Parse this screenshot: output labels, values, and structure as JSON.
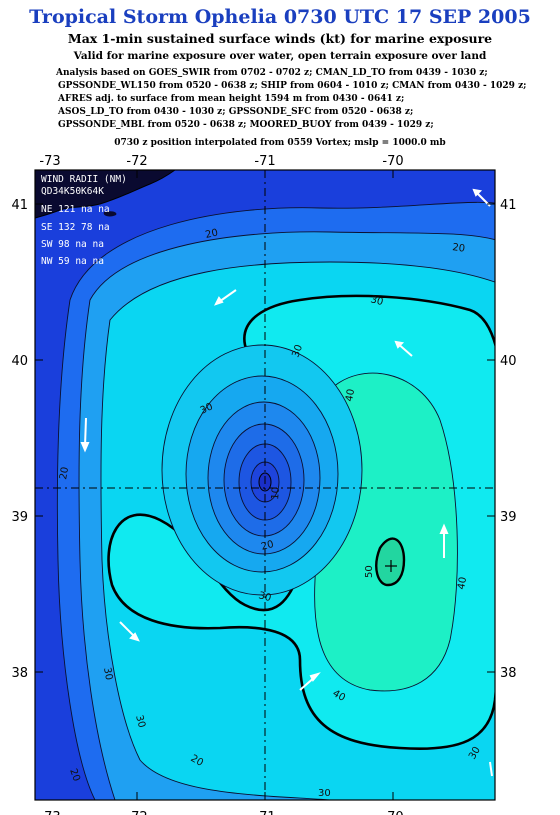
{
  "header": {
    "title": "Tropical Storm Ophelia 0730 UTC 17 SEP 2005",
    "subtitle": "Max 1-min sustained surface winds (kt) for marine exposure",
    "valid_line": "Valid for marine exposure over water, open terrain exposure over land",
    "analysis_lines": [
      "Analysis based on  GOES_SWIR from 0702 - 0702 z;  CMAN_LD_TO from 0439 - 1030 z;",
      "GPSSONDE_WL150 from 0520 - 0638 z;  SHIP from 0604 - 1010 z;  CMAN from 0430 - 1029 z;",
      "AFRES adj. to surface from mean height 1594 m from 0430 - 0641 z;",
      "ASOS_LD_TO from 0430 - 1030 z;  GPSSONDE_SFC from 0520 - 0638 z;",
      "GPSSONDE_MBL from 0520 - 0638 z;  MOORED_BUOY from 0439 - 1029 z;"
    ],
    "position_line": "0730 z position interpolated from 0559 Vortex; mslp = 1000.0 mb"
  },
  "map": {
    "lon_ticks": [
      "-73",
      "-72",
      "-71",
      "-70"
    ],
    "lat_ticks": [
      "41",
      "40",
      "39",
      "38"
    ],
    "storm_center": {
      "lon": -71.05,
      "lat": 39.2
    },
    "max_wind_center": {
      "lon": -70.1,
      "lat": 38.7
    },
    "contour_labels": [
      "20",
      "20",
      "30",
      "30",
      "30",
      "40",
      "40",
      "40",
      "50",
      "10",
      "20",
      "30",
      "20",
      "30",
      "20",
      "30",
      "30",
      "30",
      "20"
    ],
    "wind_radii_box": {
      "header": "WIND RADII (NM)",
      "thresholds": "QD34K50K64K",
      "rows": [
        "NE 121  na  na",
        "SE 132  78  na",
        "SW  98  na  na",
        "NW  59  na  na"
      ]
    },
    "colors": {
      "outer": "#1a3fdc",
      "level_10": "#1e6cf0",
      "level_20": "#18a6f4",
      "level_30": "#00e2f2",
      "level_40": "#10f2cc",
      "level_50": "#22dca0",
      "land": "#0a0a30"
    }
  }
}
